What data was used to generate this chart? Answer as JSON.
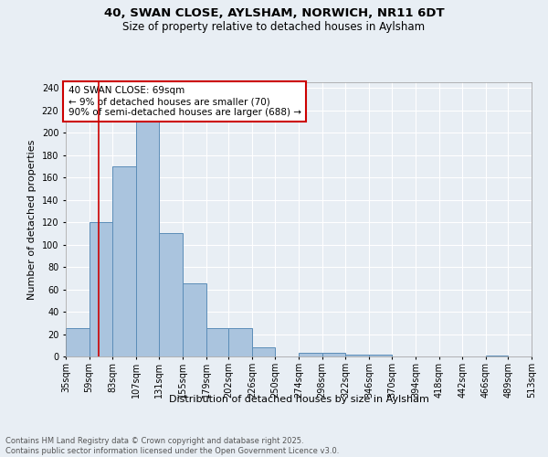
{
  "title_line1": "40, SWAN CLOSE, AYLSHAM, NORWICH, NR11 6DT",
  "title_line2": "Size of property relative to detached houses in Aylsham",
  "xlabel": "Distribution of detached houses by size in Aylsham",
  "ylabel": "Number of detached properties",
  "bins": [
    35,
    59,
    83,
    107,
    131,
    155,
    179,
    202,
    226,
    250,
    274,
    298,
    322,
    346,
    370,
    394,
    418,
    442,
    466,
    489,
    513
  ],
  "values": [
    25,
    120,
    170,
    220,
    110,
    65,
    25,
    25,
    8,
    0,
    3,
    3,
    2,
    2,
    0,
    0,
    0,
    0,
    1,
    0
  ],
  "bar_color": "#aac4de",
  "bar_edge_color": "#5b8db8",
  "vline_x": 69,
  "vline_color": "#cc0000",
  "annotation_text": "40 SWAN CLOSE: 69sqm\n← 9% of detached houses are smaller (70)\n90% of semi-detached houses are larger (688) →",
  "annotation_box_color": "#ffffff",
  "annotation_box_edge": "#cc0000",
  "ylim": [
    0,
    245
  ],
  "yticks": [
    0,
    20,
    40,
    60,
    80,
    100,
    120,
    140,
    160,
    180,
    200,
    220,
    240
  ],
  "background_color": "#e8eef4",
  "plot_bg_color": "#e8eef4",
  "grid_color": "#ffffff",
  "footer_text": "Contains HM Land Registry data © Crown copyright and database right 2025.\nContains public sector information licensed under the Open Government Licence v3.0.",
  "title_fontsize": 9.5,
  "subtitle_fontsize": 8.5,
  "axis_label_fontsize": 8,
  "tick_fontsize": 7,
  "annotation_fontsize": 7.5,
  "footer_fontsize": 6
}
